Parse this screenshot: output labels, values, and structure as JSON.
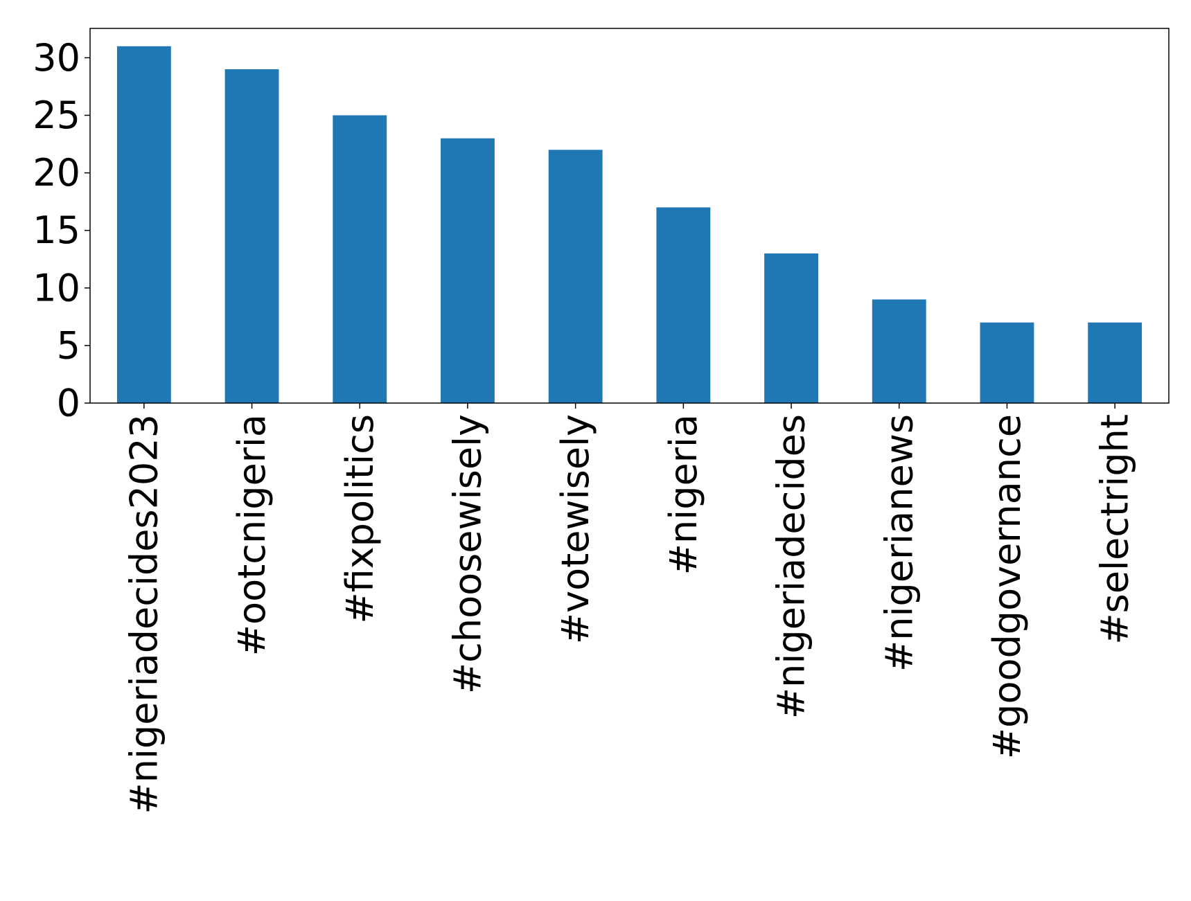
{
  "chart_data": {
    "type": "bar",
    "categories": [
      "#nigeriadecides2023",
      "#ootcnigeria",
      "#fixpolitics",
      "#choosewisely",
      "#votewisely",
      "#nigeria",
      "#nigeriadecides",
      "#nigerianews",
      "#goodgovernance",
      "#selectright"
    ],
    "values": [
      31,
      29,
      25,
      23,
      22,
      17,
      13,
      9,
      7,
      7
    ],
    "color": "#1f77b4",
    "ylim": [
      0,
      32.55
    ],
    "yticks": [
      0,
      5,
      10,
      15,
      20,
      25,
      30
    ],
    "grid": false
  }
}
